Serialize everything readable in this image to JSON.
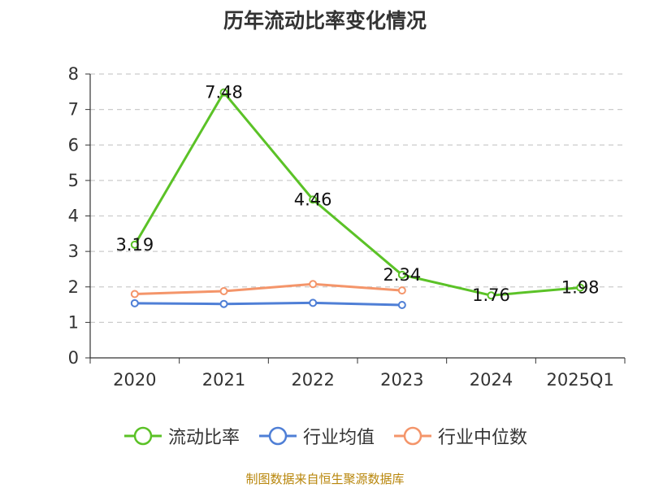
{
  "title": "历年流动比率变化情况",
  "source": "制图数据来自恒生聚源数据库",
  "chart_data": {
    "type": "line",
    "title": "历年流动比率变化情况",
    "categories": [
      "2020",
      "2021",
      "2022",
      "2023",
      "2024",
      "2025Q1"
    ],
    "ylim": [
      0,
      8
    ],
    "yticks": [
      0,
      1,
      2,
      3,
      4,
      5,
      6,
      7,
      8
    ],
    "grid": true,
    "legend_position": "bottom",
    "series": [
      {
        "name": "流动比率",
        "color": "#5bc227",
        "values": [
          3.19,
          7.48,
          4.46,
          2.34,
          1.76,
          1.98
        ],
        "labels": [
          "3.19",
          "7.48",
          "4.46",
          "2.34",
          "1.76",
          "1.98"
        ]
      },
      {
        "name": "行业均值",
        "color": "#4f7fd6",
        "values": [
          1.54,
          1.52,
          1.55,
          1.49,
          null,
          null
        ]
      },
      {
        "name": "行业中位数",
        "color": "#f4956a",
        "values": [
          1.8,
          1.88,
          2.08,
          1.9,
          null,
          null
        ]
      }
    ]
  }
}
